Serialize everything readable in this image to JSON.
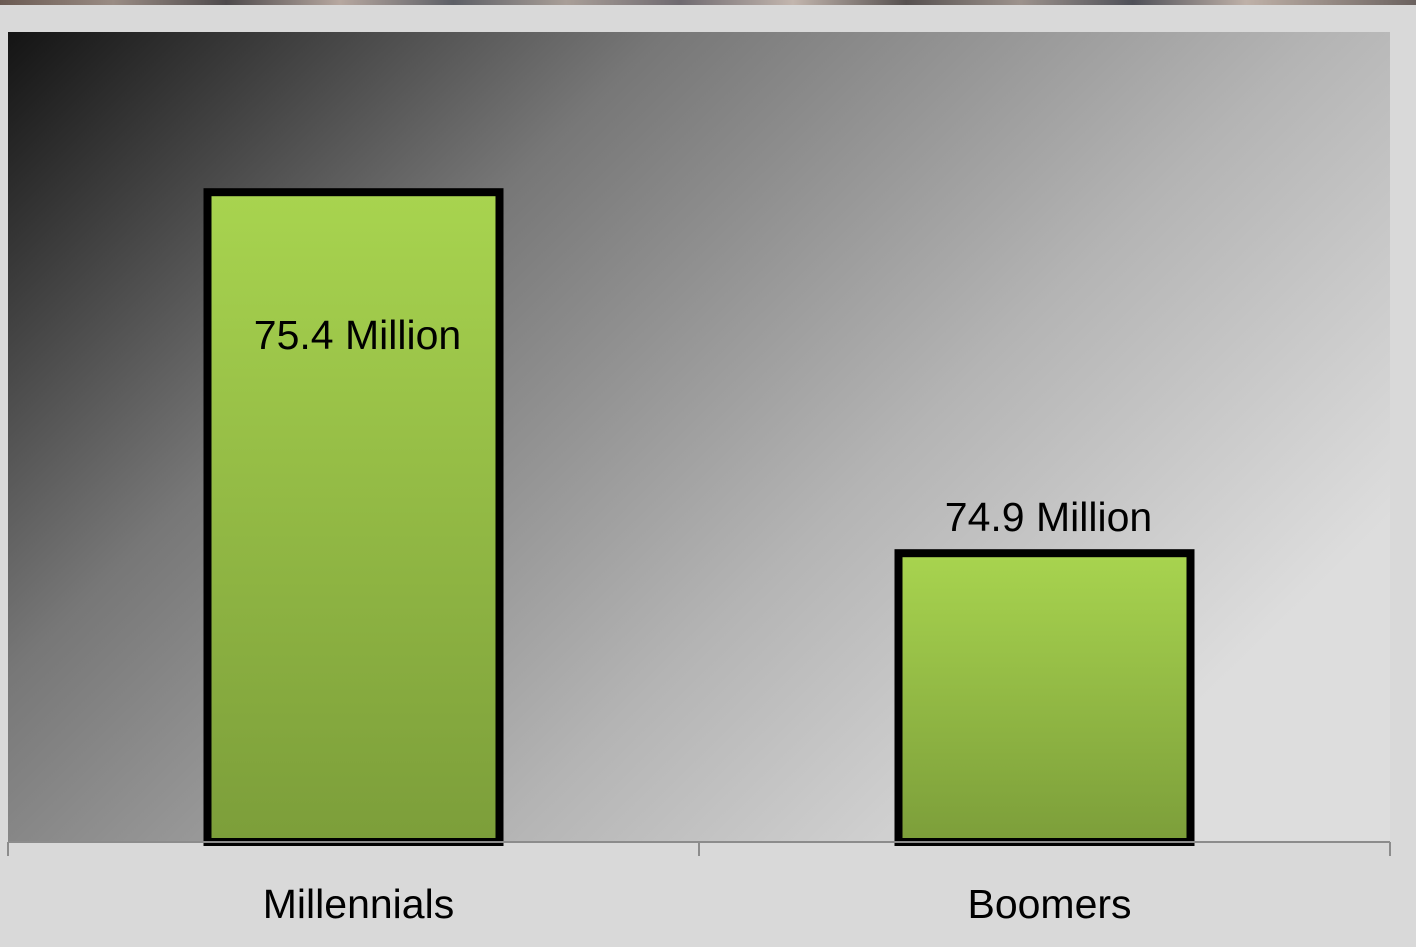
{
  "chart_data": {
    "type": "bar",
    "categories": [
      "Millennials",
      "Boomers"
    ],
    "values": [
      75.4,
      74.9
    ],
    "data_labels": [
      "75.4 Million",
      "74.9 Million"
    ],
    "title": "",
    "xlabel": "",
    "ylabel": "",
    "ylim": [
      74.5,
      75.5
    ],
    "grid": false,
    "legend": "none"
  },
  "colors": {
    "bar_top": "#a8d44f",
    "bar_bottom": "#7c9e3a",
    "bar_outline": "#000000",
    "plot_bg_dark": "#1a1a1a",
    "plot_bg_light": "#dcdcdc",
    "slide_bg": "#d9d9d9",
    "axis": "#8c8c8c"
  }
}
